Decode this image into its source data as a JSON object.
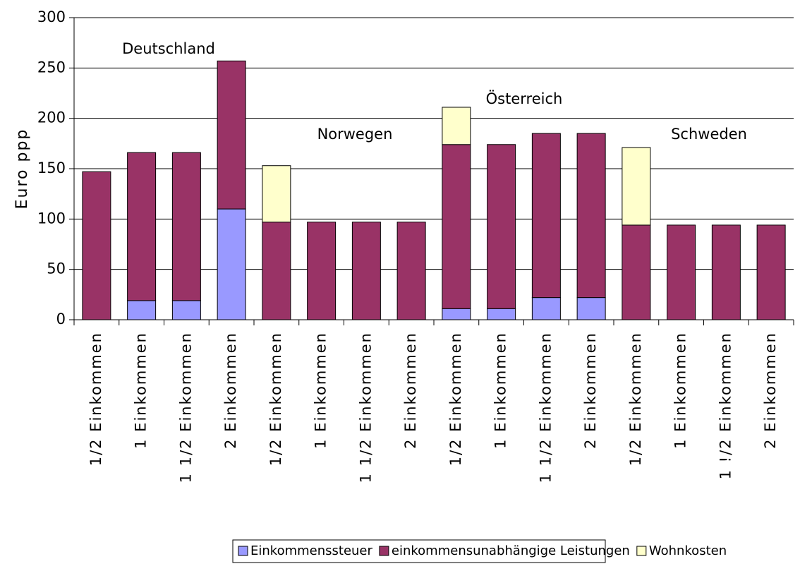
{
  "chart_data": {
    "type": "stacked_bar",
    "y_label": "Euro ppp",
    "annotations": [
      "Deutschland",
      "Norwegen",
      "Österreich",
      "Schweden"
    ],
    "categories": [
      "1/2 Einkommen",
      "1 Einkommen",
      "1 1/2 Einkommen",
      "2 Einkommen",
      "1/2 Einkommen",
      "1 Einkommen",
      "1 1/2 Einkommen",
      "2 Einkommen",
      "1/2 Einkommen",
      "1 Einkommen",
      "1 1/2 Einkommen",
      "2 Einkommen",
      "1/2 Einkommen",
      "1 Einkommen",
      "1 !/2 Einkommen",
      "2 Einkommen"
    ],
    "series": [
      {
        "name": "Einkommenssteuer",
        "color": "#9999ff",
        "values": [
          0,
          19,
          19,
          110,
          0,
          0,
          0,
          0,
          11,
          11,
          22,
          22,
          0,
          0,
          0,
          0
        ]
      },
      {
        "name": "einkommensunabhängige Leistungen",
        "color": "#993366",
        "values": [
          147,
          147,
          147,
          147,
          97,
          97,
          97,
          97,
          163,
          163,
          163,
          163,
          94,
          94,
          94,
          94
        ]
      },
      {
        "name": "Wohnkosten",
        "color": "#ffffcc",
        "values": [
          0,
          0,
          0,
          0,
          56,
          0,
          0,
          0,
          37,
          0,
          0,
          0,
          77,
          0,
          0,
          0
        ]
      }
    ],
    "ylim": [
      0,
      300
    ],
    "yticks": [
      0,
      50,
      100,
      150,
      200,
      250,
      300
    ],
    "grid": true,
    "legend": "bottom"
  }
}
